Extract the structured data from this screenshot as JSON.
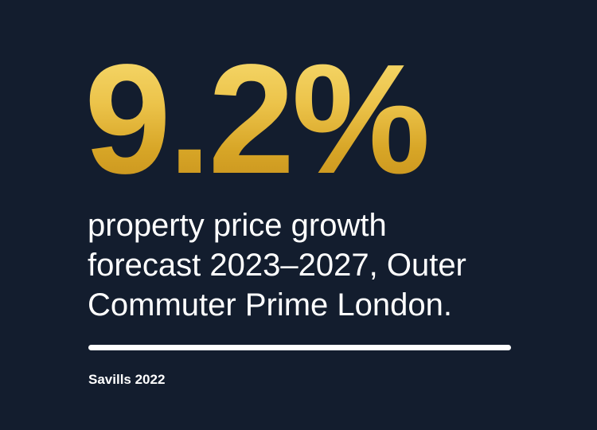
{
  "stat": {
    "value": "9.2%",
    "caption_lines": [
      "property price growth",
      "forecast 2023–2027, Outer",
      "Commuter Prime London."
    ]
  },
  "source": "Savills 2022",
  "colors": {
    "background": "#131d2e",
    "accent_gold": "#e6b93c",
    "text": "#ffffff"
  }
}
